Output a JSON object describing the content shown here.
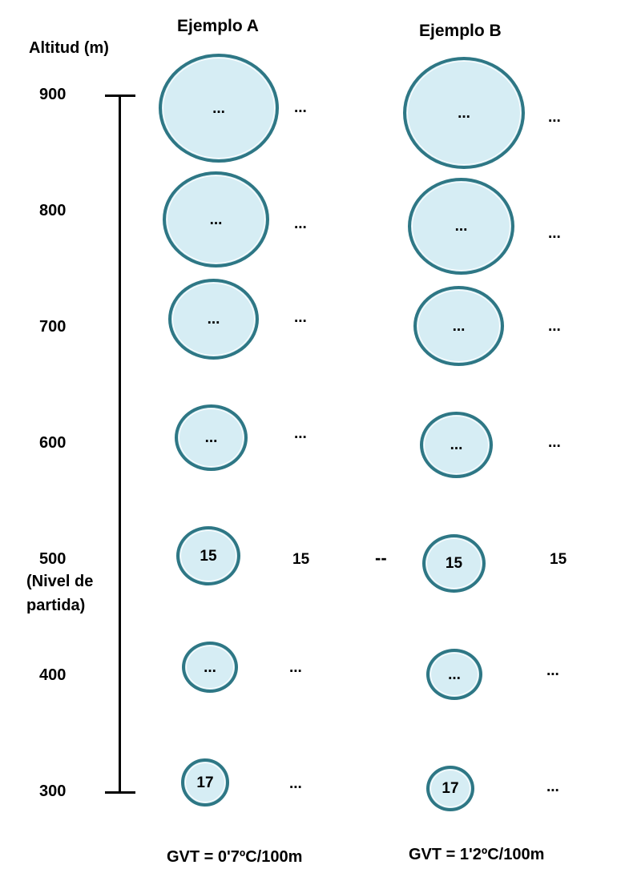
{
  "titles": {
    "a": "Ejemplo A",
    "b": "Ejemplo B"
  },
  "axis": {
    "label": "Altitud (m)",
    "ticks": [
      "900",
      "800",
      "700",
      "600",
      "500",
      "400",
      "300"
    ],
    "start_note_1": "(Nivel de",
    "start_note_2": "partida)"
  },
  "example_a": {
    "inside": [
      "...",
      "...",
      "...",
      "...",
      "15",
      "...",
      "17"
    ],
    "outside": [
      "...",
      "...",
      "...",
      "...",
      "15",
      "...",
      "..."
    ],
    "gvt": "GVT = 0'7ºC/100m"
  },
  "example_b": {
    "inside": [
      "...",
      "...",
      "...",
      "...",
      "15",
      "...",
      "17"
    ],
    "outside": [
      "...",
      "...",
      "...",
      "...",
      "15",
      "...",
      "..."
    ],
    "gvt": "GVT = 1'2ºC/100m"
  },
  "separator": "--",
  "colors": {
    "parcel_fill": "#d6edf4",
    "parcel_border": "#2e7785"
  }
}
